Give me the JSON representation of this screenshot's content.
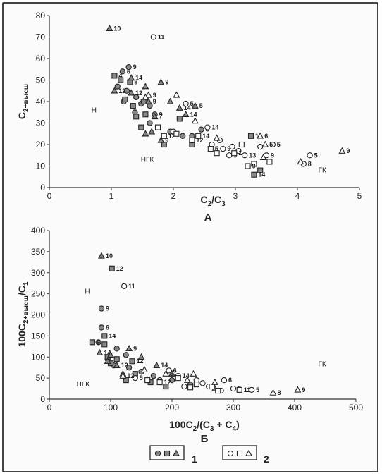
{
  "chart_data": [
    {
      "type": "scatter",
      "panel_label": "А",
      "xlabel": "C2/C3",
      "ylabel": "C2+высш",
      "xlim": [
        0,
        5
      ],
      "ylim": [
        0,
        80
      ],
      "x_ticks": [
        "0",
        "1",
        "2",
        "3",
        "4",
        "5"
      ],
      "y_ticks": [
        "0",
        "10",
        "20",
        "30",
        "40",
        "50",
        "60",
        "70",
        "80"
      ],
      "zones": [
        {
          "label": "Н",
          "x": 0.72,
          "y": 35
        },
        {
          "label": "НГК",
          "x": 1.58,
          "y": 12
        },
        {
          "label": "ГК",
          "x": 4.4,
          "y": 7
        }
      ],
      "series": [
        {
          "name": "1",
          "marker": "circle",
          "filled": true,
          "points": [
            [
              1.18,
              54,
              "6"
            ],
            [
              1.28,
              56,
              "9"
            ],
            [
              1.1,
              47,
              ""
            ],
            [
              1.25,
              45,
              ""
            ],
            [
              1.4,
              42,
              ""
            ],
            [
              1.38,
              35,
              ""
            ],
            [
              1.62,
              38,
              ""
            ],
            [
              1.7,
              34,
              "9"
            ],
            [
              1.62,
              30,
              ""
            ],
            [
              1.95,
              26,
              ""
            ],
            [
              2.15,
              24,
              ""
            ],
            [
              2.3,
              24,
              ""
            ],
            [
              2.45,
              27,
              "5"
            ],
            [
              1.48,
              39,
              ""
            ],
            [
              1.2,
              40,
              ""
            ]
          ]
        },
        {
          "name": "1",
          "marker": "square",
          "filled": true,
          "points": [
            [
              1.05,
              52,
              "4"
            ],
            [
              1.15,
              50,
              ""
            ],
            [
              1.3,
              49,
              "8"
            ],
            [
              1.22,
              41,
              ""
            ],
            [
              1.35,
              38,
              ""
            ],
            [
              1.52,
              40,
              ""
            ],
            [
              1.4,
              33,
              ""
            ],
            [
              1.55,
              34,
              ""
            ],
            [
              1.48,
              28,
              ""
            ],
            [
              2.1,
              32,
              ""
            ],
            [
              2.3,
              20,
              ""
            ],
            [
              3.25,
              24,
              "14"
            ],
            [
              3.4,
              8,
              ""
            ],
            [
              1.85,
              20,
              ""
            ],
            [
              3.3,
              6,
              "14"
            ]
          ]
        },
        {
          "name": "1",
          "marker": "triangle",
          "filled": true,
          "points": [
            [
              0.97,
              74,
              "10"
            ],
            [
              1.32,
              44,
              "12"
            ],
            [
              1.05,
              45,
              "12"
            ],
            [
              1.32,
              51,
              "14"
            ],
            [
              1.55,
              47,
              ""
            ],
            [
              1.6,
              40,
              "9"
            ],
            [
              1.8,
              49,
              "9"
            ],
            [
              1.95,
              40,
              ""
            ],
            [
              2.1,
              37,
              "14"
            ],
            [
              1.7,
              33,
              "7"
            ],
            [
              1.55,
              25,
              ""
            ],
            [
              1.8,
              22,
              "9"
            ],
            [
              2.35,
              38,
              "5"
            ],
            [
              2.2,
              34,
              "14"
            ],
            [
              1.65,
              26,
              ""
            ]
          ]
        },
        {
          "name": "2",
          "marker": "circle",
          "filled": false,
          "points": [
            [
              1.68,
              70,
              "11"
            ],
            [
              2.2,
              39,
              "5"
            ],
            [
              2.0,
              26,
              ""
            ],
            [
              2.55,
              28,
              "14"
            ],
            [
              2.62,
              20,
              ""
            ],
            [
              2.8,
              18,
              "9"
            ],
            [
              2.95,
              19,
              ""
            ],
            [
              3.05,
              17,
              ""
            ],
            [
              3.15,
              15,
              "13"
            ],
            [
              3.4,
              19,
              ""
            ],
            [
              3.5,
              15,
              "9"
            ],
            [
              3.6,
              20,
              "5"
            ],
            [
              2.9,
              15,
              "9"
            ],
            [
              4.1,
              11,
              "8"
            ],
            [
              4.2,
              15,
              "5"
            ],
            [
              2.75,
              22,
              ""
            ]
          ]
        },
        {
          "name": "2",
          "marker": "square",
          "filled": false,
          "points": [
            [
              1.85,
              24,
              "12"
            ],
            [
              2.05,
              25,
              ""
            ],
            [
              2.4,
              24,
              "14"
            ],
            [
              2.6,
              18,
              "5"
            ],
            [
              2.98,
              16,
              "1"
            ],
            [
              3.3,
              11,
              ""
            ],
            [
              3.1,
              20,
              ""
            ],
            [
              3.55,
              12,
              ""
            ],
            [
              2.3,
              22,
              "12"
            ],
            [
              1.75,
              28,
              ""
            ],
            [
              2.7,
              16,
              ""
            ],
            [
              3.2,
              10,
              "9"
            ]
          ]
        },
        {
          "name": "2",
          "marker": "triangle",
          "filled": false,
          "points": [
            [
              1.6,
              43,
              "9"
            ],
            [
              2.05,
              43,
              ""
            ],
            [
              2.35,
              31,
              ""
            ],
            [
              3.4,
              24,
              "6"
            ],
            [
              3.48,
              20,
              "5"
            ],
            [
              3.45,
              14,
              ""
            ],
            [
              4.05,
              12,
              ""
            ],
            [
              4.72,
              17,
              "9"
            ],
            [
              1.55,
              42,
              ""
            ],
            [
              2.7,
              23,
              ""
            ]
          ]
        }
      ]
    },
    {
      "type": "scatter",
      "panel_label": "Б",
      "xlabel": "100C2/(C3 + C4)",
      "ylabel": "100C2+высш/C1",
      "xlim": [
        0,
        500
      ],
      "ylim": [
        0,
        400
      ],
      "x_ticks": [
        "0",
        "100",
        "200",
        "300",
        "400",
        "500"
      ],
      "y_ticks": [
        "0",
        "50",
        "100",
        "150",
        "200",
        "250",
        "300",
        "350",
        "400"
      ],
      "zones": [
        {
          "label": "Н",
          "x": 62,
          "y": 250
        },
        {
          "label": "НГК",
          "x": 55,
          "y": 30
        },
        {
          "label": "ГК",
          "x": 445,
          "y": 78
        }
      ],
      "series": [
        {
          "name": "1",
          "marker": "circle",
          "filled": true,
          "points": [
            [
              85,
              215,
              "9"
            ],
            [
              85,
              170,
              "6"
            ],
            [
              80,
              135,
              ""
            ],
            [
              95,
              95,
              ""
            ],
            [
              110,
              120,
              ""
            ],
            [
              130,
              75,
              ""
            ],
            [
              150,
              65,
              ""
            ],
            [
              170,
              55,
              ""
            ],
            [
              200,
              45,
              ""
            ],
            [
              230,
              35,
              ""
            ],
            [
              105,
              80,
              ""
            ],
            [
              125,
              105,
              ""
            ]
          ]
        },
        {
          "name": "1",
          "marker": "square",
          "filled": true,
          "points": [
            [
              102,
              310,
              "12"
            ],
            [
              70,
              135,
              "9"
            ],
            [
              90,
              130,
              ""
            ],
            [
              95,
              100,
              ""
            ],
            [
              110,
              95,
              ""
            ],
            [
              135,
              90,
              "12"
            ],
            [
              140,
              60,
              ""
            ],
            [
              165,
              40,
              ""
            ],
            [
              190,
              30,
              ""
            ],
            [
              90,
              150,
              "14"
            ],
            [
              100,
              85,
              ""
            ],
            [
              125,
              45,
              ""
            ]
          ]
        },
        {
          "name": "1",
          "marker": "triangle",
          "filled": true,
          "points": [
            [
              85,
              340,
              "10"
            ],
            [
              82,
              110,
              "14"
            ],
            [
              110,
              80,
              "12"
            ],
            [
              130,
              120,
              "9"
            ],
            [
              150,
              100,
              ""
            ],
            [
              175,
              80,
              "14"
            ],
            [
              95,
              90,
              ""
            ],
            [
              120,
              60,
              ""
            ],
            [
              200,
              60,
              ""
            ],
            [
              270,
              25,
              ""
            ],
            [
              100,
              105,
              ""
            ]
          ]
        },
        {
          "name": "2",
          "marker": "circle",
          "filled": false,
          "points": [
            [
              122,
              268,
              "11"
            ],
            [
              140,
              50,
              "5"
            ],
            [
              180,
              45,
              ""
            ],
            [
              210,
              55,
              "14"
            ],
            [
              240,
              45,
              ""
            ],
            [
              260,
              30,
              ""
            ],
            [
              280,
              20,
              ""
            ],
            [
              300,
              25,
              "9"
            ],
            [
              330,
              22,
              "5"
            ],
            [
              285,
              45,
              "6"
            ],
            [
              220,
              30,
              ""
            ],
            [
              250,
              38,
              ""
            ],
            [
              195,
              68,
              "6"
            ]
          ]
        },
        {
          "name": "2",
          "marker": "square",
          "filled": false,
          "points": [
            [
              160,
              45,
              ""
            ],
            [
              180,
              40,
              "12"
            ],
            [
              210,
              50,
              ""
            ],
            [
              240,
              35,
              ""
            ],
            [
              265,
              30,
              ""
            ],
            [
              310,
              22,
              "11"
            ],
            [
              230,
              28,
              ""
            ],
            [
              275,
              20,
              ""
            ]
          ]
        },
        {
          "name": "2",
          "marker": "triangle",
          "filled": false,
          "points": [
            [
              120,
              55,
              "12"
            ],
            [
              155,
              70,
              ""
            ],
            [
              190,
              60,
              "9"
            ],
            [
              235,
              60,
              ""
            ],
            [
              270,
              40,
              ""
            ],
            [
              365,
              15,
              "8"
            ],
            [
              405,
              22,
              "9"
            ],
            [
              225,
              45,
              ""
            ]
          ]
        }
      ]
    }
  ],
  "legend": {
    "groups": [
      {
        "label": "1",
        "filled": true
      },
      {
        "label": "2",
        "filled": false
      }
    ]
  }
}
